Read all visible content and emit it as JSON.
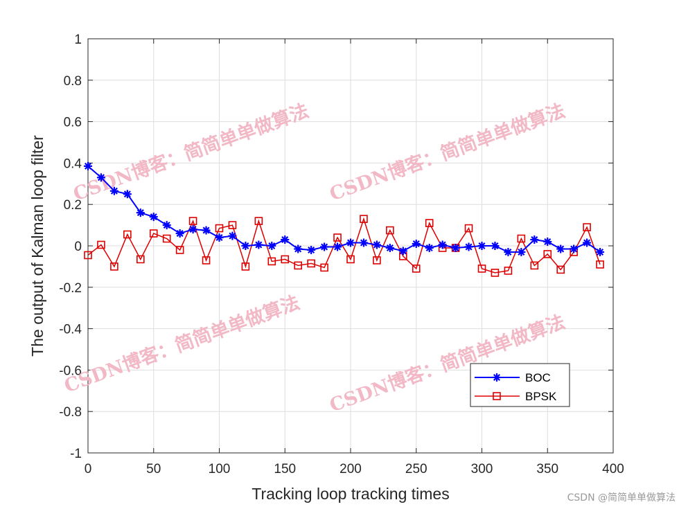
{
  "chart_data": {
    "type": "line",
    "xlabel": "Tracking loop tracking times",
    "ylabel": "The output of Kalman loop filter",
    "xlim": [
      0,
      400
    ],
    "ylim": [
      -1,
      1
    ],
    "xticks": [
      0,
      50,
      100,
      150,
      200,
      250,
      300,
      350,
      400
    ],
    "yticks": [
      -1,
      -0.8,
      -0.6,
      -0.4,
      -0.2,
      0,
      0.2,
      0.4,
      0.6,
      0.8,
      1
    ],
    "grid": true,
    "legend_position": "bottom-right",
    "x": [
      0,
      10,
      20,
      30,
      40,
      50,
      60,
      70,
      80,
      90,
      100,
      110,
      120,
      130,
      140,
      150,
      160,
      170,
      180,
      190,
      200,
      210,
      220,
      230,
      240,
      250,
      260,
      270,
      280,
      290,
      300,
      310,
      320,
      330,
      340,
      350,
      360,
      370,
      380,
      390
    ],
    "series": [
      {
        "name": "BOC",
        "color": "#0000ff",
        "marker": "asterisk",
        "values": [
          0.385,
          0.33,
          0.265,
          0.25,
          0.16,
          0.14,
          0.1,
          0.06,
          0.08,
          0.075,
          0.04,
          0.048,
          0.0,
          0.005,
          0.0,
          0.03,
          -0.015,
          -0.02,
          -0.005,
          -0.005,
          0.015,
          0.015,
          0.005,
          -0.01,
          -0.025,
          0.01,
          -0.01,
          0.005,
          -0.01,
          -0.005,
          0.0,
          0.0,
          -0.03,
          -0.03,
          0.03,
          0.02,
          -0.015,
          -0.015,
          0.015,
          -0.03
        ]
      },
      {
        "name": "BPSK",
        "color": "#dd0000",
        "marker": "square",
        "values": [
          -0.045,
          0.005,
          -0.1,
          0.055,
          -0.065,
          0.06,
          0.035,
          -0.02,
          0.12,
          -0.07,
          0.085,
          0.1,
          -0.1,
          0.12,
          -0.075,
          -0.065,
          -0.095,
          -0.085,
          -0.105,
          0.04,
          -0.065,
          0.13,
          -0.07,
          0.075,
          -0.05,
          -0.11,
          0.11,
          -0.01,
          -0.01,
          0.085,
          -0.11,
          -0.13,
          -0.12,
          0.035,
          -0.095,
          -0.04,
          -0.115,
          -0.03,
          0.09,
          -0.09
        ]
      }
    ]
  },
  "watermarks": [
    {
      "text": "CSDN博客：简简单单做算法"
    },
    {
      "text": "CSDN博客：简简单单做算法"
    },
    {
      "text": "CSDN博客：简简单单做算法"
    },
    {
      "text": "CSDN博客：简简单单做算法"
    }
  ],
  "footer_credit": "CSDN @简简单单做算法"
}
